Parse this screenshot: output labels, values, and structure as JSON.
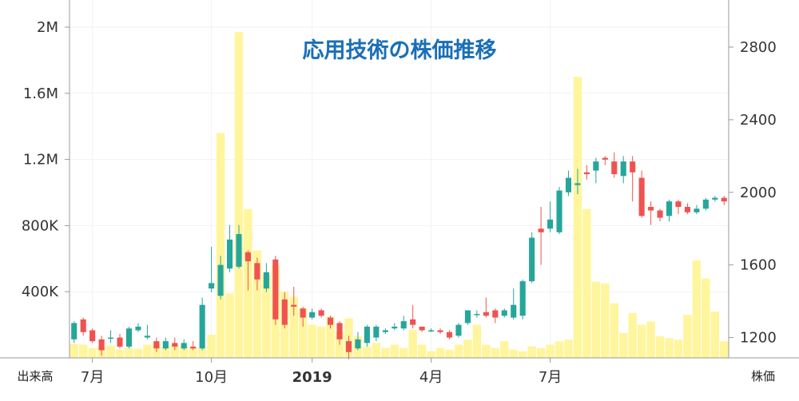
{
  "chart_data": {
    "type": "candlestick",
    "title": "応用技術の株価推移",
    "left_axis_title": "出来高",
    "right_axis_title": "株価",
    "volume_axis": {
      "ylim": [
        0,
        2000000
      ],
      "ticks": [
        400000,
        800000,
        1200000,
        1600000,
        2000000
      ],
      "tick_labels": [
        "400K",
        "800K",
        "1.2M",
        "1.6M",
        "2M"
      ]
    },
    "price_axis": {
      "ylim": [
        1000,
        2800
      ],
      "ticks": [
        1200,
        1600,
        2000,
        2400,
        2800
      ],
      "tick_labels": [
        "1200",
        "1600",
        "2000",
        "2400",
        "2800"
      ]
    },
    "x_tick_labels": [
      {
        "label": "7月",
        "index": 2,
        "bold": false
      },
      {
        "label": "10月",
        "index": 15,
        "bold": false
      },
      {
        "label": "2019",
        "index": 26,
        "bold": true
      },
      {
        "label": "4月",
        "index": 39,
        "bold": false
      },
      {
        "label": "7月",
        "index": 52,
        "bold": false
      }
    ],
    "colors": {
      "up": "#26a69a",
      "down": "#ef5350",
      "volume": "#fff59d",
      "grid": "#f2f2f2",
      "axis": "#999999",
      "title": "#1a6fb7"
    },
    "volume": [
      85000,
      80000,
      60000,
      70000,
      75000,
      50000,
      60000,
      55000,
      80000,
      90000,
      65000,
      75000,
      70000,
      60000,
      60000,
      140000,
      1360000,
      390000,
      1970000,
      900000,
      650000,
      500000,
      560000,
      400000,
      370000,
      300000,
      200000,
      190000,
      250000,
      160000,
      240000,
      130000,
      70000,
      90000,
      60000,
      80000,
      60000,
      170000,
      80000,
      40000,
      60000,
      50000,
      80000,
      110000,
      200000,
      80000,
      60000,
      100000,
      50000,
      40000,
      70000,
      60000,
      80000,
      100000,
      110000,
      1700000,
      900000,
      460000,
      450000,
      330000,
      150000,
      270000,
      200000,
      220000,
      130000,
      120000,
      110000,
      260000,
      590000,
      480000,
      280000,
      100000
    ],
    "ohlc": [
      [
        1190,
        1280,
        1170,
        1290
      ],
      [
        1300,
        1230,
        1210,
        1310
      ],
      [
        1240,
        1180,
        1170,
        1250
      ],
      [
        1190,
        1130,
        1100,
        1210
      ],
      [
        1200,
        1200,
        1170,
        1240
      ],
      [
        1200,
        1150,
        1140,
        1220
      ],
      [
        1150,
        1250,
        1140,
        1260
      ],
      [
        1240,
        1260,
        1230,
        1280
      ],
      [
        1200,
        1210,
        1190,
        1270
      ],
      [
        1180,
        1140,
        1120,
        1200
      ],
      [
        1140,
        1180,
        1130,
        1200
      ],
      [
        1170,
        1150,
        1130,
        1200
      ],
      [
        1140,
        1170,
        1130,
        1190
      ],
      [
        1150,
        1140,
        1130,
        1180
      ],
      [
        1140,
        1380,
        1130,
        1420
      ],
      [
        1470,
        1500,
        1450,
        1700
      ],
      [
        1430,
        1600,
        1410,
        1650
      ],
      [
        1580,
        1740,
        1560,
        1820
      ],
      [
        1590,
        1770,
        1580,
        1820
      ],
      [
        1670,
        1620,
        1460,
        1680
      ],
      [
        1610,
        1520,
        1460,
        1640
      ],
      [
        1470,
        1560,
        1450,
        1610
      ],
      [
        1630,
        1300,
        1270,
        1650
      ],
      [
        1410,
        1270,
        1250,
        1450
      ],
      [
        1380,
        1370,
        1320,
        1480
      ],
      [
        1360,
        1310,
        1260,
        1370
      ],
      [
        1310,
        1340,
        1300,
        1360
      ],
      [
        1350,
        1320,
        1310,
        1360
      ],
      [
        1310,
        1270,
        1250,
        1320
      ],
      [
        1280,
        1190,
        1160,
        1290
      ],
      [
        1180,
        1120,
        1080,
        1210
      ],
      [
        1140,
        1190,
        1130,
        1230
      ],
      [
        1170,
        1260,
        1150,
        1270
      ],
      [
        1200,
        1260,
        1180,
        1270
      ],
      [
        1230,
        1240,
        1220,
        1250
      ],
      [
        1250,
        1260,
        1240,
        1280
      ],
      [
        1250,
        1290,
        1240,
        1320
      ],
      [
        1300,
        1270,
        1250,
        1380
      ],
      [
        1260,
        1240,
        1230,
        1260
      ],
      [
        1240,
        1240,
        1230,
        1250
      ],
      [
        1240,
        1230,
        1220,
        1250
      ],
      [
        1230,
        1200,
        1190,
        1240
      ],
      [
        1210,
        1270,
        1200,
        1280
      ],
      [
        1280,
        1350,
        1270,
        1350
      ],
      [
        1330,
        1330,
        1310,
        1350
      ],
      [
        1340,
        1320,
        1310,
        1420
      ],
      [
        1350,
        1310,
        1280,
        1360
      ],
      [
        1320,
        1350,
        1310,
        1360
      ],
      [
        1310,
        1380,
        1300,
        1470
      ],
      [
        1320,
        1510,
        1300,
        1520
      ],
      [
        1510,
        1750,
        1500,
        1780
      ],
      [
        1800,
        1780,
        1600,
        1920
      ],
      [
        1800,
        1850,
        1780,
        1950
      ],
      [
        1780,
        2010,
        1770,
        2030
      ],
      [
        2000,
        2080,
        1980,
        2120
      ],
      [
        2040,
        2050,
        1990,
        2130
      ],
      [
        2110,
        2100,
        2070,
        2150
      ],
      [
        2120,
        2170,
        2050,
        2190
      ],
      [
        2190,
        2180,
        2150,
        2200
      ],
      [
        2170,
        2100,
        2080,
        2220
      ],
      [
        2090,
        2170,
        2050,
        2200
      ],
      [
        2170,
        2110,
        1950,
        2200
      ],
      [
        2080,
        1870,
        1860,
        2120
      ],
      [
        1920,
        1900,
        1820,
        1950
      ],
      [
        1900,
        1860,
        1840,
        1910
      ],
      [
        1870,
        1950,
        1840,
        1960
      ],
      [
        1950,
        1920,
        1880,
        1960
      ],
      [
        1920,
        1890,
        1880,
        1940
      ],
      [
        1890,
        1910,
        1880,
        1930
      ],
      [
        1910,
        1960,
        1900,
        1970
      ],
      [
        1960,
        1970,
        1950,
        1980
      ],
      [
        1970,
        1950,
        1930,
        1980
      ]
    ]
  }
}
